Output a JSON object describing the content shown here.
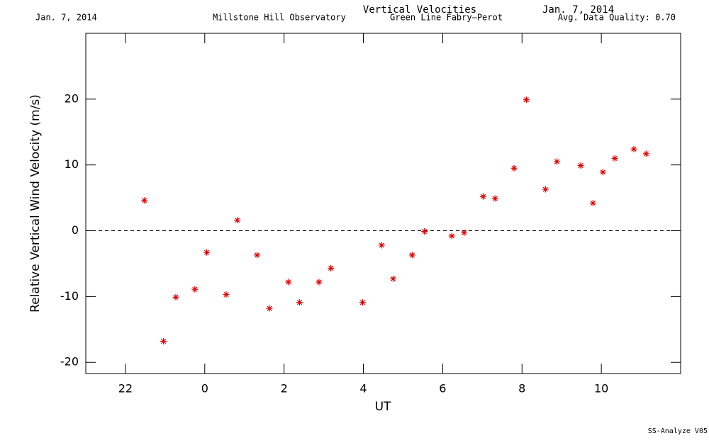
{
  "header": {
    "date_left": "Jan. 7, 2014",
    "observatory": "Millstone Hill Observatory",
    "instrument": "Green Line Fabry—Perot",
    "date_right": "Jan. 7, 2014",
    "quality": "Avg. Data Quality: 0.70",
    "footer": "SS-Analyze V05"
  },
  "chart_data": {
    "type": "scatter",
    "title": "Vertical Velocities",
    "xlabel": "UT",
    "ylabel": "Relative Vertical Wind Velocity (m/s)",
    "xlim": [
      21,
      36
    ],
    "ylim": [
      -21.7,
      30
    ],
    "xticks": [
      22,
      {
        "value": 24,
        "label": "0"
      },
      {
        "value": 26,
        "label": "2"
      },
      {
        "value": 28,
        "label": "4"
      },
      {
        "value": 30,
        "label": "6"
      },
      {
        "value": 32,
        "label": "8"
      },
      {
        "value": 34,
        "label": "10"
      }
    ],
    "yticks": [
      -20,
      -10,
      0,
      10,
      20
    ],
    "zero_line": 0,
    "marker": "asterisk",
    "color": "#e00000",
    "x": [
      22.48,
      22.96,
      23.27,
      23.75,
      24.05,
      24.54,
      24.82,
      25.32,
      25.63,
      26.11,
      26.39,
      26.88,
      27.18,
      27.98,
      28.46,
      28.75,
      29.23,
      29.54,
      30.23,
      30.54,
      31.02,
      31.32,
      31.8,
      32.11,
      32.59,
      32.88,
      33.48,
      33.79,
      34.04,
      34.34,
      34.82,
      35.13
    ],
    "values": [
      4.6,
      -16.8,
      -10.1,
      -8.9,
      -3.3,
      -9.7,
      1.6,
      -3.7,
      -11.8,
      -7.8,
      -10.9,
      -7.8,
      -5.7,
      -10.9,
      -2.2,
      -7.3,
      -3.7,
      -0.1,
      -0.8,
      -0.3,
      5.2,
      4.9,
      9.5,
      19.9,
      6.3,
      10.5,
      9.9,
      4.2,
      8.9,
      11.0,
      12.4,
      11.7
    ]
  }
}
